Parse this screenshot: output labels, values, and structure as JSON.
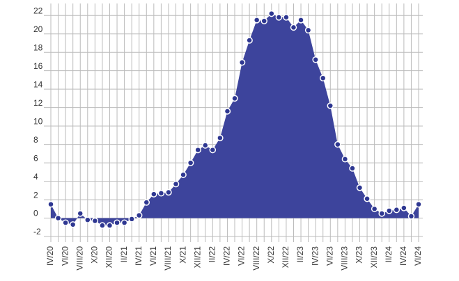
{
  "chart_data": {
    "type": "area",
    "categories": [
      "IV/20",
      null,
      "VI/20",
      null,
      "VIII/20",
      null,
      "X/20",
      null,
      "XII/20",
      null,
      "II/21",
      null,
      "IV/21",
      null,
      "VI/21",
      null,
      "VIII/21",
      null,
      "X/21",
      null,
      "XII/21",
      null,
      "II/22",
      null,
      "IV/22",
      null,
      "VI/22",
      null,
      "VIII/22",
      null,
      "X/22",
      null,
      "XII/22",
      null,
      "II/23",
      null,
      "IV/23",
      null,
      "VI/23",
      null,
      "VIII/23",
      null,
      "X/23",
      null,
      "XII/23",
      null,
      "II/24",
      null,
      "IV/24",
      null,
      "VI/24"
    ],
    "values": [
      1.5,
      0,
      -0.5,
      -0.7,
      0.5,
      -0.2,
      -0.3,
      -0.8,
      -0.8,
      -0.5,
      -0.5,
      -0.1,
      0.3,
      1.7,
      2.6,
      2.7,
      2.8,
      3.7,
      4.7,
      6,
      7.4,
      7.9,
      7.4,
      8.7,
      11.6,
      13,
      16.9,
      19.3,
      21.5,
      21.4,
      22.2,
      21.8,
      21.8,
      20.7,
      21.5,
      20.4,
      17.2,
      15.2,
      12.2,
      8,
      6.4,
      5.4,
      3.3,
      2.1,
      1.0,
      0.5,
      0.8,
      0.9,
      1.1,
      0.2,
      1.5
    ],
    "color": "#3d449c",
    "ylim": [
      -2.6,
      23.3
    ],
    "yticks": [
      -2,
      0,
      2,
      4,
      6,
      8,
      10,
      12,
      14,
      16,
      18,
      20,
      22
    ],
    "grid": true
  }
}
